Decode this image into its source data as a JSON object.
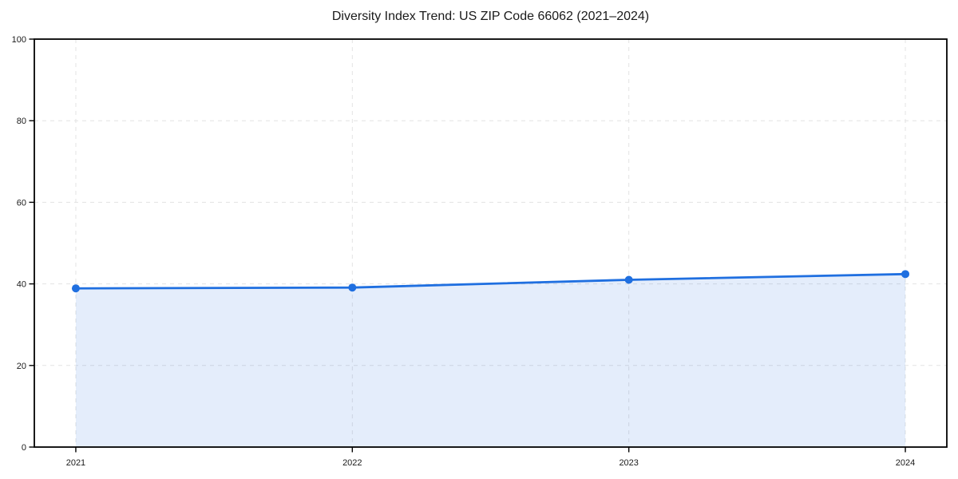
{
  "page": {
    "background": "#ffffff"
  },
  "chart_data": {
    "type": "area",
    "title": "Diversity Index Trend: US ZIP Code 66062 (2021–2024)",
    "x": [
      2021,
      2022,
      2023,
      2024
    ],
    "x_tick_labels": [
      "2021",
      "2022",
      "2023",
      "2024"
    ],
    "series": [
      {
        "name": "Diversity Index",
        "values": [
          38.9,
          39.1,
          41.0,
          42.4
        ]
      }
    ],
    "xlabel": "",
    "ylabel": "",
    "ylim": [
      0,
      100
    ],
    "yticks": [
      0,
      20,
      40,
      60,
      80,
      100
    ],
    "x_margin_frac": 0.05,
    "grid": true,
    "grid_style": "dashed",
    "legend": false,
    "area_baseline": 0,
    "colors": {
      "line": "#1f6fe0",
      "marker": "#1f6fe0",
      "fill": "#1f6fe0",
      "fill_opacity": 0.12,
      "grid": "#e3e3e3",
      "spine": "#000000",
      "tick_text": "#1a1a1a"
    }
  }
}
